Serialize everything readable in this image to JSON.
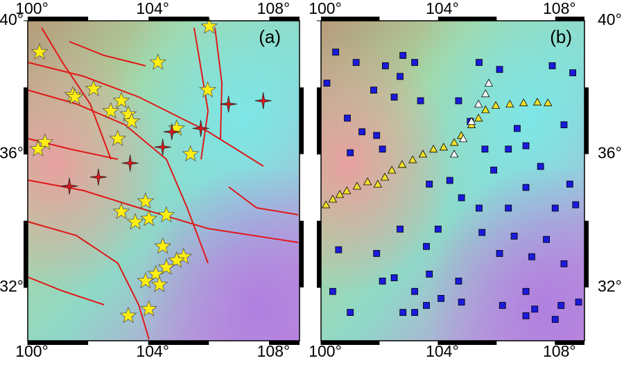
{
  "lonlim": [
    100,
    109
  ],
  "latlim": [
    30.4,
    40
  ],
  "lon_ticks": [
    {
      "value": 100,
      "label": "100°"
    },
    {
      "value": 104,
      "label": "104°"
    },
    {
      "value": 108,
      "label": "108°"
    }
  ],
  "lat_ticks": [
    {
      "value": 32,
      "label": "32°"
    },
    {
      "value": 36,
      "label": "36°"
    },
    {
      "value": 40,
      "label": "40°"
    }
  ],
  "panels": [
    {
      "label": "(a)",
      "star_color": "#ffee11",
      "cross_color": "#e8161a",
      "stars": [
        [
          106.01,
          39.83
        ],
        [
          104.31,
          38.75
        ],
        [
          100.39,
          39.06
        ],
        [
          101.49,
          37.77
        ],
        [
          102.18,
          37.96
        ],
        [
          101.56,
          37.71
        ],
        [
          102.75,
          37.29
        ],
        [
          103.1,
          37.6
        ],
        [
          103.33,
          37.19
        ],
        [
          103.44,
          36.98
        ],
        [
          102.98,
          36.46
        ],
        [
          104.93,
          36.77
        ],
        [
          105.96,
          37.92
        ],
        [
          105.39,
          36.0
        ],
        [
          100.57,
          36.35
        ],
        [
          100.34,
          36.15
        ],
        [
          103.9,
          34.58
        ],
        [
          103.1,
          34.27
        ],
        [
          103.56,
          33.96
        ],
        [
          104.01,
          34.06
        ],
        [
          104.59,
          34.17
        ],
        [
          104.47,
          33.23
        ],
        [
          105.16,
          32.92
        ],
        [
          104.93,
          32.81
        ],
        [
          104.59,
          32.6
        ],
        [
          104.24,
          32.4
        ],
        [
          103.9,
          32.19
        ],
        [
          104.36,
          32.08
        ],
        [
          104.01,
          31.35
        ],
        [
          103.33,
          31.15
        ]
      ],
      "crosses": [
        [
          106.65,
          37.5
        ],
        [
          107.8,
          37.6
        ],
        [
          105.73,
          36.77
        ],
        [
          104.77,
          36.67
        ],
        [
          104.47,
          36.21
        ],
        [
          103.39,
          35.73
        ],
        [
          102.34,
          35.31
        ],
        [
          101.38,
          35.04
        ]
      ]
    },
    {
      "label": "(b)",
      "square_color": "#1a1adc",
      "triangle_color": "#f2e02a",
      "white_triangle_color": "#ffffff",
      "squares": [
        [
          100.5,
          39.06
        ],
        [
          101.2,
          38.75
        ],
        [
          100.2,
          38.13
        ],
        [
          102.8,
          38.96
        ],
        [
          102.2,
          38.65
        ],
        [
          102.7,
          38.33
        ],
        [
          103.2,
          38.75
        ],
        [
          101.8,
          37.92
        ],
        [
          102.5,
          37.71
        ],
        [
          103.4,
          37.6
        ],
        [
          104.7,
          37.6
        ],
        [
          105.4,
          38.75
        ],
        [
          106.1,
          38.54
        ],
        [
          107.9,
          38.65
        ],
        [
          108.6,
          38.44
        ],
        [
          105.1,
          36.98
        ],
        [
          106.7,
          36.77
        ],
        [
          108.3,
          36.88
        ],
        [
          100.9,
          37.08
        ],
        [
          101.4,
          36.67
        ],
        [
          101.9,
          36.56
        ],
        [
          101.0,
          36.04
        ],
        [
          102.1,
          36.15
        ],
        [
          105.6,
          36.15
        ],
        [
          106.4,
          36.15
        ],
        [
          107.0,
          36.25
        ],
        [
          107.5,
          35.63
        ],
        [
          108.5,
          35.1
        ],
        [
          105.9,
          35.52
        ],
        [
          107.0,
          35.0
        ],
        [
          103.7,
          35.1
        ],
        [
          104.4,
          35.21
        ],
        [
          104.8,
          34.69
        ],
        [
          105.4,
          34.38
        ],
        [
          106.4,
          34.38
        ],
        [
          108.0,
          34.38
        ],
        [
          108.7,
          34.48
        ],
        [
          102.7,
          33.75
        ],
        [
          104.0,
          33.75
        ],
        [
          105.5,
          33.65
        ],
        [
          106.6,
          33.54
        ],
        [
          107.7,
          33.44
        ],
        [
          100.6,
          33.13
        ],
        [
          101.9,
          33.02
        ],
        [
          103.6,
          33.23
        ],
        [
          106.1,
          33.02
        ],
        [
          107.2,
          32.92
        ],
        [
          108.3,
          32.71
        ],
        [
          102.5,
          32.29
        ],
        [
          103.7,
          32.4
        ],
        [
          104.7,
          32.19
        ],
        [
          107.0,
          31.88
        ],
        [
          100.4,
          31.88
        ],
        [
          102.1,
          32.19
        ],
        [
          103.2,
          31.88
        ],
        [
          104.1,
          31.67
        ],
        [
          104.8,
          31.56
        ],
        [
          106.2,
          31.46
        ],
        [
          107.3,
          31.35
        ],
        [
          108.2,
          31.46
        ],
        [
          108.8,
          31.56
        ],
        [
          101.0,
          31.25
        ],
        [
          102.8,
          31.25
        ],
        [
          103.2,
          31.25
        ],
        [
          103.6,
          31.46
        ],
        [
          107.0,
          31.15
        ],
        [
          108.0,
          31.04
        ]
      ],
      "triangles": [
        [
          100.17,
          34.48
        ],
        [
          100.4,
          34.65
        ],
        [
          100.64,
          34.79
        ],
        [
          100.88,
          34.9
        ],
        [
          101.23,
          35.04
        ],
        [
          101.59,
          35.17
        ],
        [
          101.94,
          35.1
        ],
        [
          102.18,
          35.31
        ],
        [
          102.42,
          35.52
        ],
        [
          102.77,
          35.69
        ],
        [
          103.13,
          35.83
        ],
        [
          103.48,
          36.0
        ],
        [
          103.84,
          36.15
        ],
        [
          104.19,
          36.21
        ],
        [
          104.55,
          36.35
        ],
        [
          104.79,
          36.56
        ],
        [
          105.14,
          36.88
        ],
        [
          105.38,
          37.08
        ],
        [
          105.62,
          37.33
        ],
        [
          105.97,
          37.46
        ],
        [
          106.45,
          37.5
        ],
        [
          106.92,
          37.54
        ],
        [
          107.39,
          37.56
        ],
        [
          107.75,
          37.54
        ]
      ],
      "white_triangles": [
        [
          105.73,
          38.13
        ],
        [
          105.62,
          37.81
        ],
        [
          105.38,
          37.5
        ],
        [
          105.14,
          36.98
        ],
        [
          104.86,
          36.46
        ],
        [
          104.55,
          36.0
        ]
      ]
    }
  ]
}
